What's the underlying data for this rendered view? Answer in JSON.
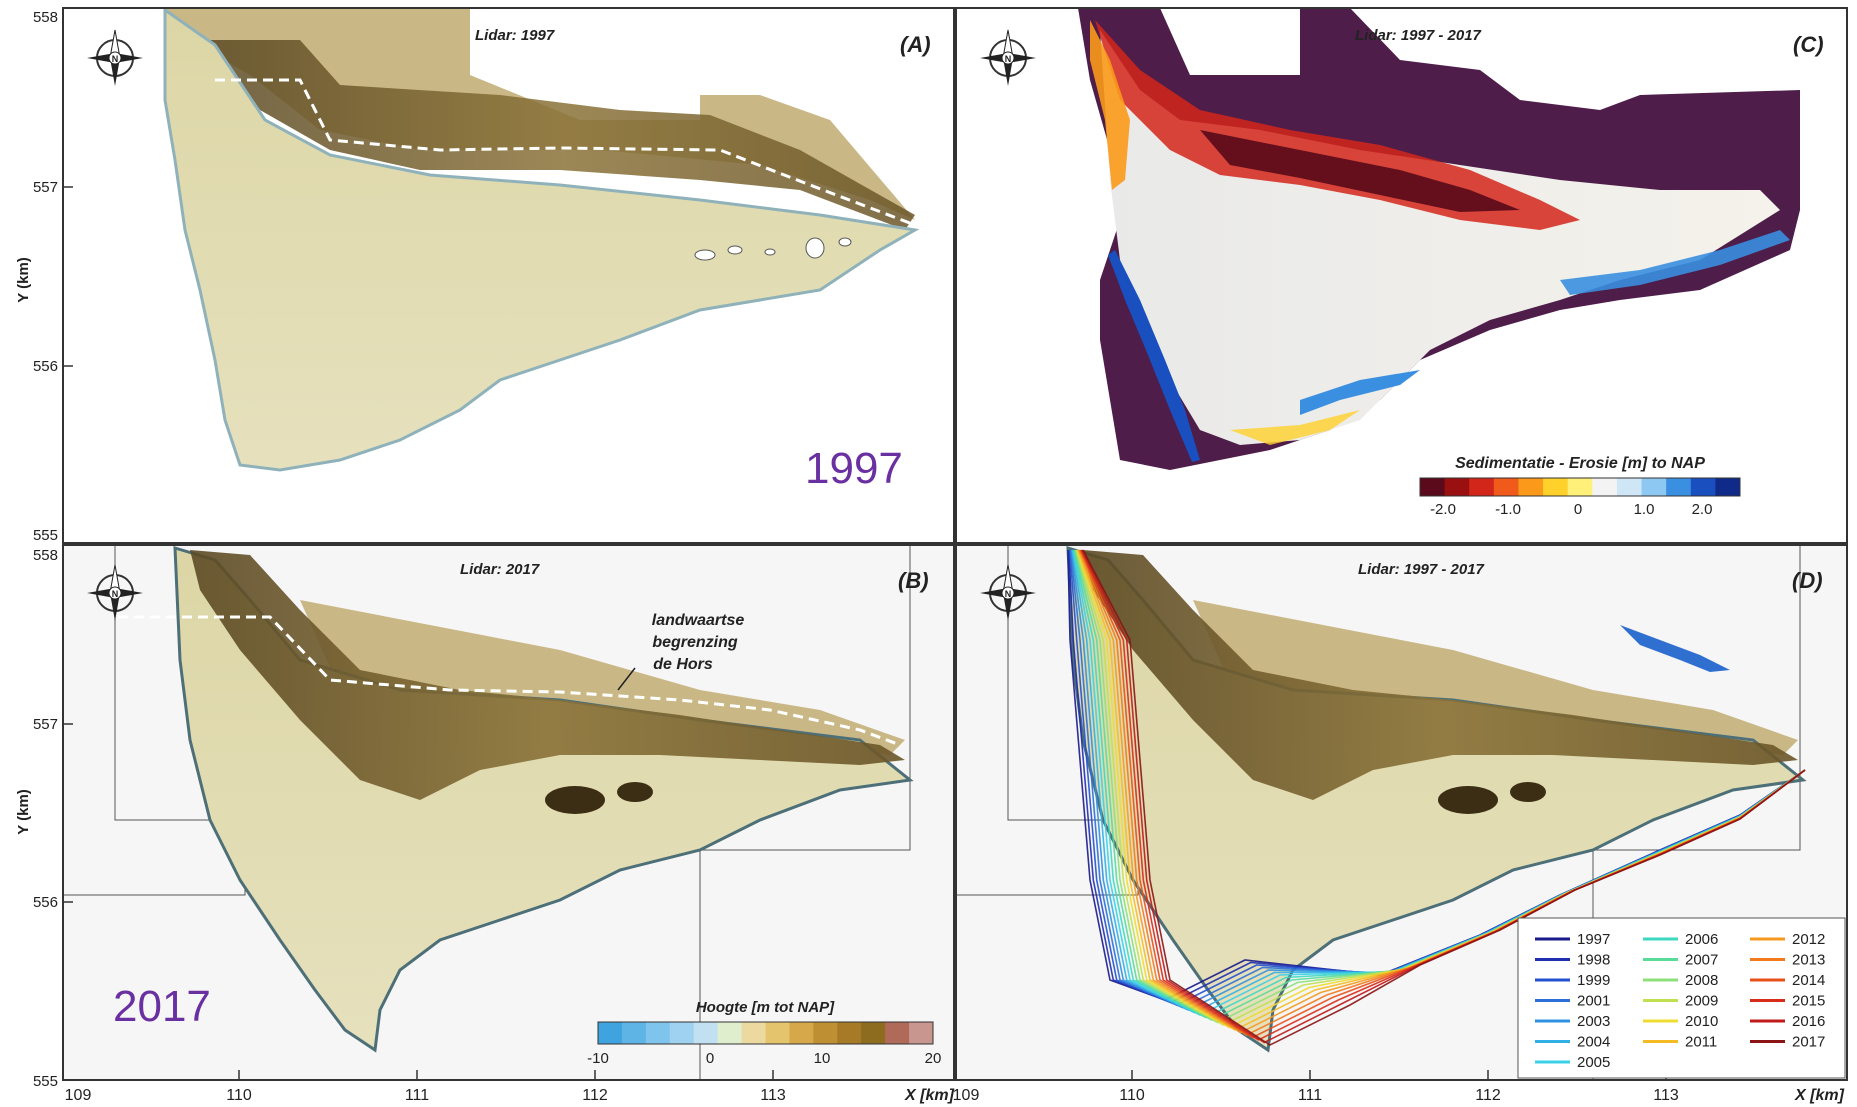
{
  "axes": {
    "y_ticks_top": [
      "558",
      "557",
      "556",
      "555"
    ],
    "y_ticks_bottom": [
      "558",
      "557",
      "556",
      "555"
    ],
    "x_ticks_left": [
      "109",
      "110",
      "111",
      "112",
      "113"
    ],
    "x_ticks_right": [
      "109",
      "110",
      "111",
      "112",
      "113"
    ],
    "y_label": "Y (km)",
    "x_label": "X [km]"
  },
  "panels": {
    "A": {
      "title": "Lidar: 1997",
      "tag": "(A)",
      "year": "1997"
    },
    "B": {
      "title": "Lidar: 2017",
      "tag": "(B)",
      "year": "2017",
      "annotation": [
        "landwaartse",
        "begrenzing",
        "de Hors"
      ]
    },
    "C": {
      "title": "Lidar: 1997 - 2017",
      "tag": "(C)"
    },
    "D": {
      "title": "Lidar: 1997 - 2017",
      "tag": "(D)"
    }
  },
  "colorbar_hoogte": {
    "title": "Hoogte [m tot NAP]",
    "ticks": [
      "-10",
      "0",
      "10",
      "20"
    ],
    "colors": [
      "#3fa3df",
      "#5fb4e6",
      "#7fc4ec",
      "#9fd2f0",
      "#c1e1f2",
      "#dfeecd",
      "#ecd9a0",
      "#e5c46e",
      "#d6a84a",
      "#bf8f33",
      "#a67a26",
      "#8d6c1f",
      "#b06a5a",
      "#c9958f"
    ]
  },
  "colorbar_erosie": {
    "title": "Sedimentatie - Erosie  [m] to NAP",
    "ticks": [
      "-2.0",
      "-1.0",
      "0",
      "1.0",
      "2.0"
    ],
    "colors": [
      "#5a0a1a",
      "#9a0f10",
      "#d3261a",
      "#f05a1a",
      "#fb9a1a",
      "#ffd12a",
      "#fff07a",
      "#f3f3f3",
      "#cfe6f7",
      "#8cc8f1",
      "#3a8fe0",
      "#1a4fc0",
      "#102a8a"
    ]
  },
  "legend_years": [
    {
      "year": "1997",
      "color": "#1a1a8a"
    },
    {
      "year": "1998",
      "color": "#1f2fb0"
    },
    {
      "year": "1999",
      "color": "#2350d0"
    },
    {
      "year": "2001",
      "color": "#2b6fd8"
    },
    {
      "year": "2003",
      "color": "#2f90e0"
    },
    {
      "year": "2004",
      "color": "#30b0e6"
    },
    {
      "year": "2005",
      "color": "#3ad0e8"
    },
    {
      "year": "2006",
      "color": "#3ed8c0"
    },
    {
      "year": "2007",
      "color": "#58dc9a"
    },
    {
      "year": "2008",
      "color": "#8ce07a"
    },
    {
      "year": "2009",
      "color": "#c0e050"
    },
    {
      "year": "2010",
      "color": "#eedc30"
    },
    {
      "year": "2011",
      "color": "#f4bc22"
    },
    {
      "year": "2012",
      "color": "#f59a20"
    },
    {
      "year": "2013",
      "color": "#f27a1c"
    },
    {
      "year": "2014",
      "color": "#e8501a"
    },
    {
      "year": "2015",
      "color": "#d82c1a"
    },
    {
      "year": "2016",
      "color": "#c01a1a"
    },
    {
      "year": "2017",
      "color": "#8a1414"
    }
  ],
  "colors": {
    "land_light": "#e3deb0",
    "land_mid": "#d6cf98",
    "dune_dark": "#6e5a2e",
    "water_edge": "#a9c7cf",
    "dark_purple": "#4e1d4a",
    "year_text": "#6a2fa0",
    "frame": "#333333"
  }
}
